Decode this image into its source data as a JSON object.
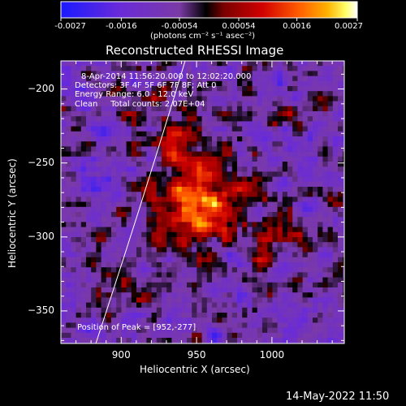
{
  "colorbar": {
    "tick_labels": [
      "-0.0027",
      "-0.0016",
      "-0.00054",
      "0.00054",
      "0.0016",
      "0.0027"
    ],
    "unit_label": "(photons cm⁻² s⁻¹ asec⁻²)",
    "range": [
      -0.0027,
      0.0027
    ],
    "colors": [
      "#1a1aff",
      "#6a2bd8",
      "#7b3aa6",
      "#000000",
      "#7a0000",
      "#d10000",
      "#ff5a00",
      "#ffb300",
      "#ffff66",
      "#ffffff"
    ]
  },
  "chart_data": {
    "type": "heatmap",
    "title": "Reconstructed RHESSI Image",
    "xlabel": "Heliocentric X (arcsec)",
    "ylabel": "Heliocentric Y (arcsec)",
    "xlim": [
      860,
      1048
    ],
    "ylim": [
      -372,
      -181
    ],
    "x_ticks": [
      900,
      950,
      1000
    ],
    "y_ticks": [
      -200,
      -250,
      -300,
      -350
    ],
    "peak": [
      952,
      -277
    ],
    "info_lines": [
      "8-Apr-2014 11:56:20.000 to 12:02:20.000",
      "Detectors: 3F 4F 5F 6F 7F 8F; Att 0",
      "Energy Range: 6.0 - 12.0 keV",
      "Clean     Total counts: 2.07E+04"
    ],
    "peak_label": "Position of Peak = [952,-277]"
  },
  "timestamp": "14-May-2022 11:50"
}
